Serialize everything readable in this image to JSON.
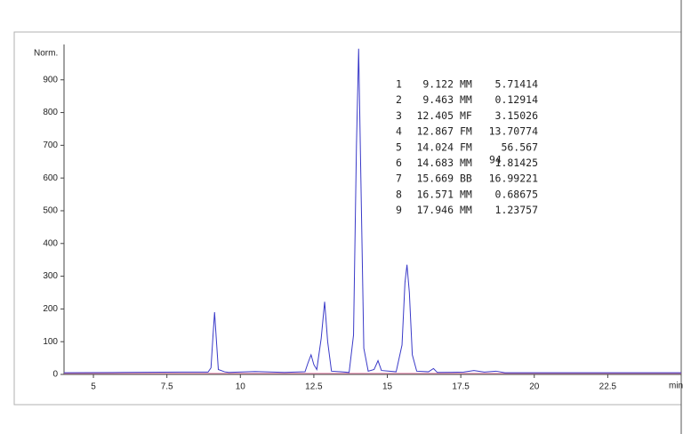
{
  "chart_data": {
    "type": "line",
    "y_label": "Norm.",
    "x_label": "min",
    "xlim": [
      4,
      25
    ],
    "ylim": [
      0,
      1008
    ],
    "xticks": [
      5,
      7.5,
      10,
      12.5,
      15,
      17.5,
      20,
      22.5
    ],
    "yticks": [
      0,
      100,
      200,
      300,
      400,
      500,
      600,
      700,
      800,
      900
    ],
    "series": [
      {
        "color": "#3a3ac8",
        "x": [
          4.0,
          6.0,
          8.0,
          8.9,
          9.0,
          9.07,
          9.122,
          9.18,
          9.25,
          9.463,
          9.6,
          10.5,
          11.5,
          12.2,
          12.3,
          12.405,
          12.5,
          12.6,
          12.75,
          12.867,
          12.97,
          13.1,
          13.7,
          13.85,
          13.95,
          14.024,
          14.1,
          14.2,
          14.35,
          14.55,
          14.683,
          14.8,
          15.3,
          15.5,
          15.6,
          15.669,
          15.75,
          15.85,
          16.0,
          16.4,
          16.571,
          16.7,
          17.6,
          17.946,
          18.3,
          18.7,
          19.0,
          25.0
        ],
        "values": [
          5,
          6,
          7,
          7,
          20,
          120,
          190,
          110,
          15,
          8,
          6,
          9,
          6,
          8,
          35,
          60,
          30,
          15,
          110,
          222,
          100,
          10,
          6,
          120,
          700,
          995,
          600,
          80,
          10,
          15,
          42,
          12,
          8,
          90,
          280,
          335,
          250,
          60,
          10,
          8,
          18,
          6,
          7,
          12,
          7,
          10,
          5,
          5
        ]
      },
      {
        "color": "#e07aa0",
        "x": [
          4.0,
          25.0
        ],
        "values": [
          3,
          3
        ]
      }
    ],
    "peak_table": [
      [
        "1",
        "9.122",
        "MM",
        "5.71414"
      ],
      [
        "2",
        "9.463",
        "MM",
        "0.12914"
      ],
      [
        "3",
        "12.405",
        "MF",
        "3.15026"
      ],
      [
        "4",
        "12.867",
        "FM",
        "13.70774"
      ],
      [
        "5",
        "14.024",
        "FM",
        "56.567"
      ],
      [
        "6",
        "14.683",
        "MM",
        "1.81425"
      ],
      [
        "7",
        "15.669",
        "BB",
        "16.99221"
      ],
      [
        "8",
        "16.571",
        "MM",
        "0.68675"
      ],
      [
        "9",
        "17.946",
        "MM",
        "1.23757"
      ]
    ],
    "overflow_text": "94"
  }
}
